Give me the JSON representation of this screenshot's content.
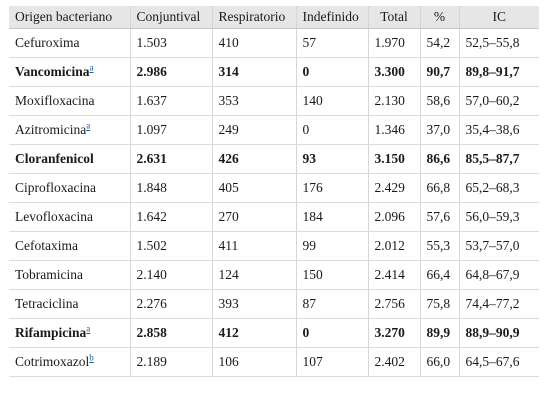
{
  "columns": [
    "Origen bacteriano",
    "Conjuntival",
    "Respiratorio",
    "Indefinido",
    "Total",
    "%",
    "IC"
  ],
  "rows": [
    {
      "name": "Cefuroxima",
      "note": "",
      "bold": false,
      "values": [
        "1.503",
        "410",
        "57",
        "1.970",
        "54,2",
        "52,5–55,8"
      ]
    },
    {
      "name": "Vancomicina",
      "note": "a",
      "bold": true,
      "values": [
        "2.986",
        "314",
        "0",
        "3.300",
        "90,7",
        "89,8–91,7"
      ]
    },
    {
      "name": "Moxifloxacina",
      "note": "",
      "bold": false,
      "values": [
        "1.637",
        "353",
        "140",
        "2.130",
        "58,6",
        "57,0–60,2"
      ]
    },
    {
      "name": "Azitromicina",
      "note": "a",
      "bold": false,
      "values": [
        "1.097",
        "249",
        "0",
        "1.346",
        "37,0",
        "35,4–38,6"
      ]
    },
    {
      "name": "Cloranfenicol",
      "note": "",
      "bold": true,
      "values": [
        "2.631",
        "426",
        "93",
        "3.150",
        "86,6",
        "85,5–87,7"
      ]
    },
    {
      "name": "Ciprofloxacina",
      "note": "",
      "bold": false,
      "values": [
        "1.848",
        "405",
        "176",
        "2.429",
        "66,8",
        "65,2–68,3"
      ]
    },
    {
      "name": "Levofloxacina",
      "note": "",
      "bold": false,
      "values": [
        "1.642",
        "270",
        "184",
        "2.096",
        "57,6",
        "56,0–59,3"
      ]
    },
    {
      "name": "Cefotaxima",
      "note": "",
      "bold": false,
      "values": [
        "1.502",
        "411",
        "99",
        "2.012",
        "55,3",
        "53,7–57,0"
      ]
    },
    {
      "name": "Tobramicina",
      "note": "",
      "bold": false,
      "values": [
        "2.140",
        "124",
        "150",
        "2.414",
        "66,4",
        "64,8–67,9"
      ]
    },
    {
      "name": "Tetraciclina",
      "note": "",
      "bold": false,
      "values": [
        "2.276",
        "393",
        "87",
        "2.756",
        "75,8",
        "74,4–77,2"
      ]
    },
    {
      "name": "Rifampicina",
      "note": "a",
      "bold": true,
      "values": [
        "2.858",
        "412",
        "0",
        "3.270",
        "89,9",
        "88,9–90,9"
      ]
    },
    {
      "name": "Cotrimoxazol",
      "note": "b",
      "bold": false,
      "values": [
        "2.189",
        "106",
        "107",
        "2.402",
        "66,0",
        "64,5–67,6"
      ]
    }
  ]
}
